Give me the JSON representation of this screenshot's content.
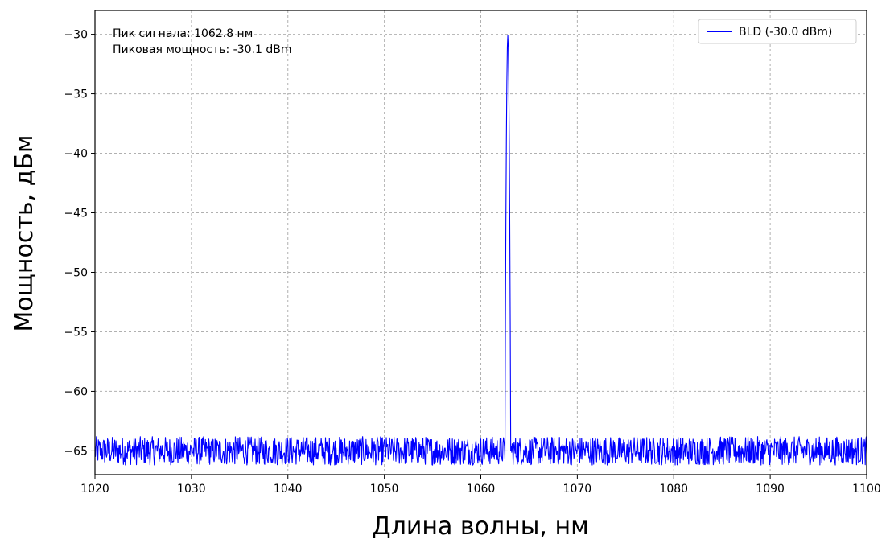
{
  "chart_data": {
    "type": "line",
    "xlabel": "Длина волны, нм",
    "ylabel": "Мощность, дБм",
    "xlim": [
      1020,
      1100
    ],
    "ylim": [
      -67,
      -28
    ],
    "xticks": [
      1020,
      1030,
      1040,
      1050,
      1060,
      1070,
      1080,
      1090,
      1100
    ],
    "yticks": [
      -30,
      -35,
      -40,
      -45,
      -50,
      -55,
      -60,
      -65
    ],
    "xtick_labels": [
      "1020",
      "1030",
      "1040",
      "1050",
      "1060",
      "1070",
      "1080",
      "1090",
      "1100"
    ],
    "ytick_labels": [
      "−30",
      "−35",
      "−40",
      "−45",
      "−50",
      "−55",
      "−60",
      "−65"
    ],
    "grid": true,
    "legend_position": "top-right",
    "annotations": [
      "Пик сигнала: 1062.8 нм",
      "Пиковая мощность: -30.1 dBm"
    ],
    "series": [
      {
        "name": "BLD (-30.0 dBm)",
        "color": "#0000ff",
        "noise_floor": -65.0,
        "noise_range": [
          -66.2,
          -63.8
        ],
        "peak": {
          "x": 1062.8,
          "y": -30.1
        },
        "peak_base": [
          1062.5,
          1063.1
        ]
      }
    ]
  }
}
